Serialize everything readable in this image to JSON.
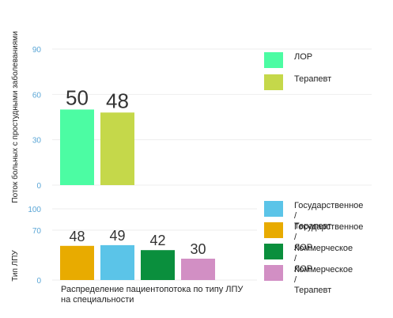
{
  "chart_data": [
    {
      "type": "bar",
      "ylabel": "Поток больных с простудными заболеваниями",
      "yticks": [
        0,
        30,
        60,
        90
      ],
      "ylim": [
        0,
        90
      ],
      "grid": true,
      "legend": "top-right",
      "series": [
        {
          "name": "ЛОР",
          "value": 50,
          "color": "#4cfca3"
        },
        {
          "name": "Терапевт",
          "value": 48,
          "color": "#c5d84a"
        }
      ]
    },
    {
      "type": "bar",
      "ylabel": "Тип ЛПУ",
      "xlabel": "Распределение пациентопотока по типу ЛПУ\nна специальности",
      "yticks": [
        0,
        70,
        100
      ],
      "ylim": [
        0,
        100
      ],
      "grid": true,
      "legend": "right",
      "series": [
        {
          "name": "Государственное /\nЛОР",
          "value": 48,
          "color": "#e8ab00"
        },
        {
          "name": "Государственное /\nТерапевт",
          "value": 49,
          "color": "#5bc4e8"
        },
        {
          "name": "Коммерческое /\nЛОР",
          "value": 42,
          "color": "#0a8f3d"
        },
        {
          "name": "Коммерческое /\nТерапевт",
          "value": 30,
          "color": "#d28fc4"
        }
      ],
      "legend_order": [
        1,
        0,
        2,
        3
      ]
    }
  ]
}
